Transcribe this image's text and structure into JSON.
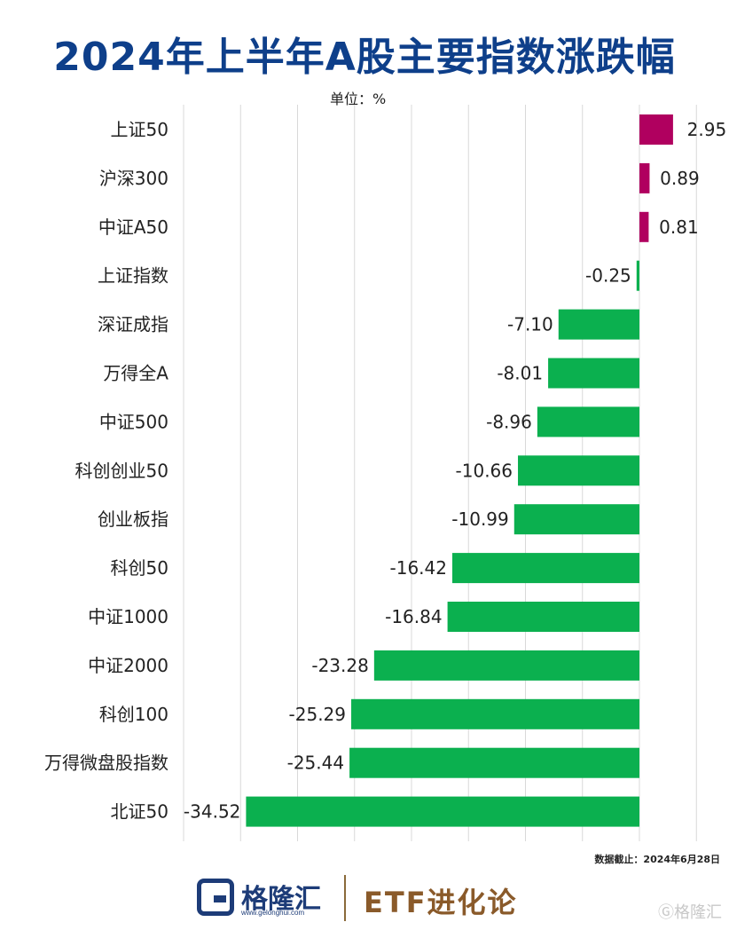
{
  "header": {
    "title": "2024年上半年A股主要指数涨跌幅",
    "unit": "单位：%"
  },
  "chart_data": {
    "type": "bar",
    "orientation": "horizontal",
    "title": "2024年上半年A股主要指数涨跌幅",
    "categories": [
      "上证50",
      "沪深300",
      "中证A50",
      "上证指数",
      "深证成指",
      "万得全A",
      "中证500",
      "科创创业50",
      "创业板指",
      "科创50",
      "中证1000",
      "中证2000",
      "科创100",
      "万得微盘股指数",
      "北证50"
    ],
    "values": [
      2.95,
      0.89,
      0.81,
      -0.25,
      -7.1,
      -8.01,
      -8.96,
      -10.66,
      -10.99,
      -16.42,
      -16.84,
      -23.28,
      -25.29,
      -25.44,
      -34.52
    ],
    "value_labels": [
      "2.95",
      "0.89",
      "0.81",
      "-0.25",
      "-7.10",
      "-8.01",
      "-8.96",
      "-10.66",
      "-10.99",
      "-16.42",
      "-16.84",
      "-23.28",
      "-25.29",
      "-25.44",
      "-34.52"
    ],
    "xlim": [
      -40,
      5
    ],
    "grid": true,
    "legend": "none",
    "colors": {
      "positive": "#b0005f",
      "negative": "#0bb04f",
      "grid": "#d9d9d9"
    }
  },
  "footer": {
    "source": "数据截止：2024年6月28日",
    "brand": "格隆汇",
    "brand_url": "www.gelonghui.com",
    "column": "ETF进化论",
    "watermark": "Ⓖ格隆汇"
  }
}
